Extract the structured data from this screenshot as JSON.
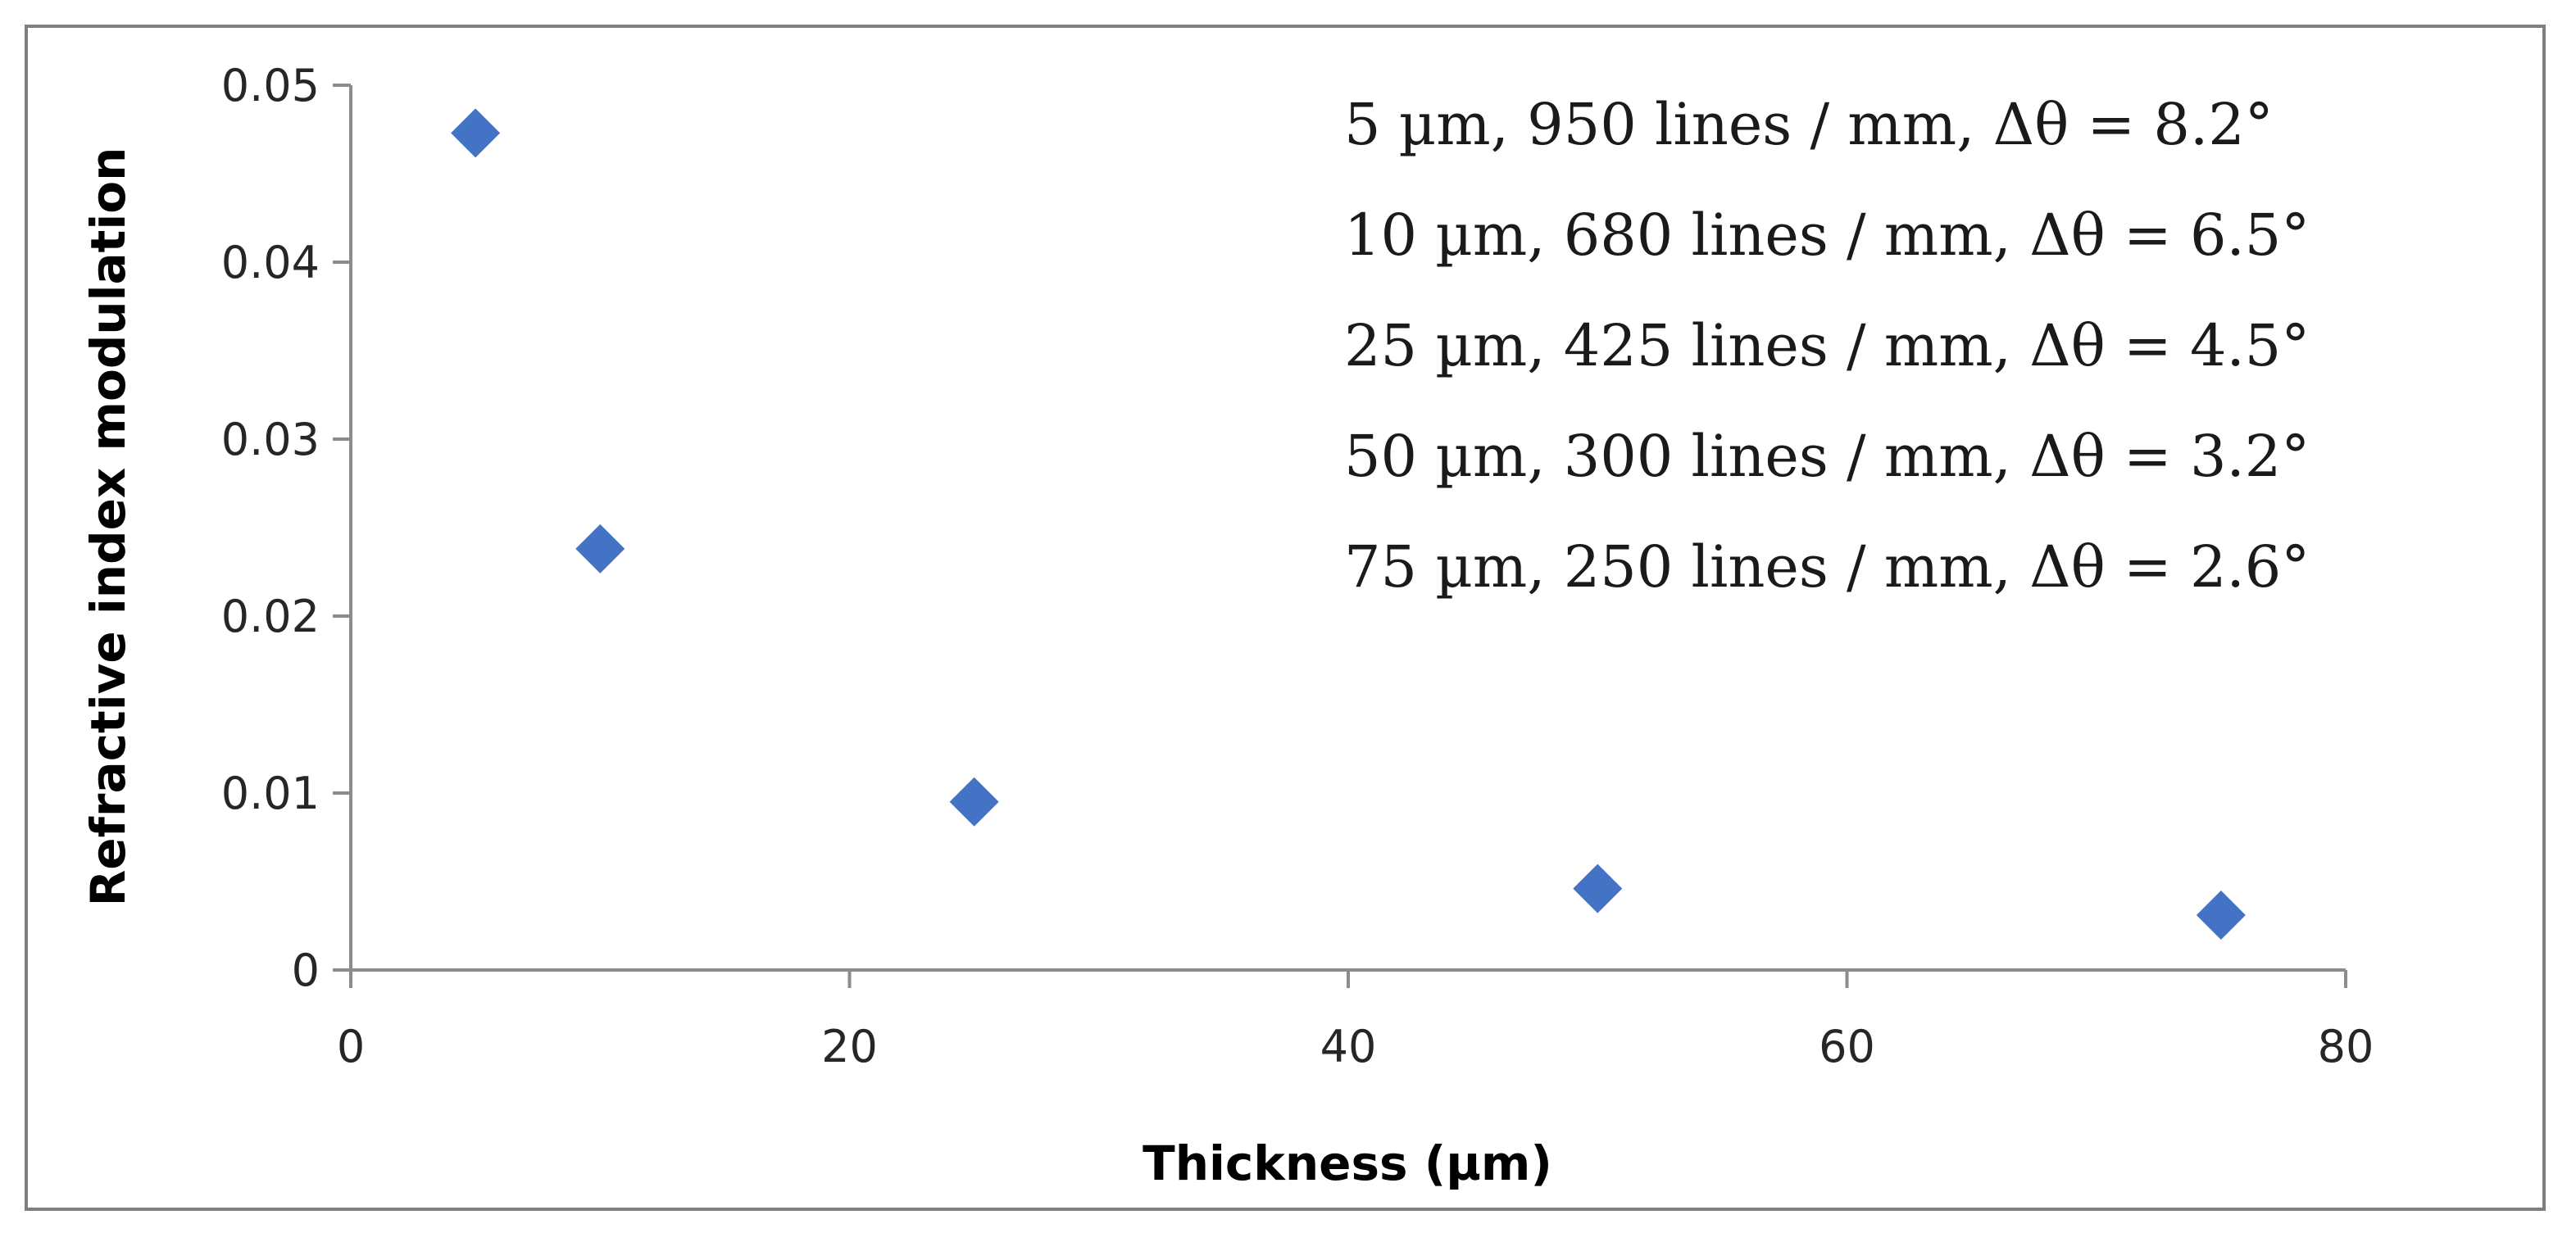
{
  "chart_data": {
    "type": "scatter",
    "xlabel": "Thickness  (µm)",
    "ylabel": "Refractive  index  modulation",
    "xlim": [
      0,
      80
    ],
    "ylim": [
      0,
      0.05
    ],
    "x_ticks": [
      0,
      20,
      40,
      60,
      80
    ],
    "x_tick_labels": [
      "0",
      "20",
      "40",
      "60",
      "80"
    ],
    "y_ticks": [
      0,
      0.01,
      0.02,
      0.03,
      0.04,
      0.05
    ],
    "y_tick_labels": [
      "0",
      "0.01",
      "0.02",
      "0.03",
      "0.04",
      "0.05"
    ],
    "grid": false,
    "marker": "diamond",
    "marker_color": "#4472c4",
    "series": [
      {
        "x": [
          5,
          10,
          25,
          50,
          75
        ],
        "y": [
          0.0473,
          0.0238,
          0.0095,
          0.0046,
          0.0031
        ]
      }
    ],
    "annotations": [
      "5 µm, 950 lines / mm, Δθ = 8.2°",
      "10 µm, 680 lines / mm, Δθ = 6.5°",
      "25 µm, 425 lines / mm, Δθ = 4.5°",
      "50 µm, 300 lines / mm, Δθ = 3.2°",
      "75 µm, 250 lines / mm, Δθ = 2.6°"
    ]
  }
}
